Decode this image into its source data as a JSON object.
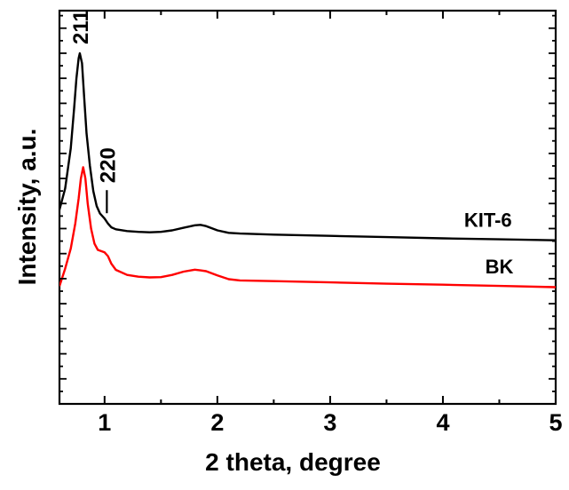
{
  "chart_data": {
    "type": "line",
    "title": "",
    "xlabel": "2 theta, degree",
    "ylabel": "Intensity, a.u.",
    "xlim": [
      0.6,
      5
    ],
    "x_ticks": [
      "1",
      "2",
      "3",
      "4",
      "5"
    ],
    "y_ticks_labeled": false,
    "grid": false,
    "legend": "none",
    "annotations": [
      {
        "text": "211",
        "x": 0.78
      },
      {
        "text": "220",
        "x": 1.0
      }
    ],
    "series": [
      {
        "name": "KIT-6",
        "color": "#000000",
        "x": [
          0.6,
          0.65,
          0.7,
          0.73,
          0.75,
          0.77,
          0.78,
          0.8,
          0.82,
          0.84,
          0.87,
          0.9,
          0.93,
          0.96,
          1.0,
          1.03,
          1.06,
          1.1,
          1.2,
          1.3,
          1.4,
          1.5,
          1.6,
          1.7,
          1.8,
          1.85,
          1.9,
          2.0,
          2.1,
          2.2,
          2.5,
          3.0,
          3.5,
          4.0,
          4.5,
          5.0
        ],
        "y": [
          17.5,
          26,
          42,
          58,
          70,
          78,
          80,
          76,
          62,
          48,
          35,
          25,
          19,
          16,
          14,
          12,
          10.5,
          9.7,
          9.0,
          8.7,
          8.5,
          8.7,
          9.3,
          10.3,
          11.3,
          11.5,
          11.0,
          9.3,
          8.3,
          8.0,
          7.6,
          7.1,
          6.6,
          6.1,
          5.7,
          5.3
        ]
      },
      {
        "name": "BK",
        "color": "#ff0000",
        "x": [
          0.6,
          0.65,
          0.7,
          0.74,
          0.77,
          0.79,
          0.81,
          0.83,
          0.85,
          0.88,
          0.91,
          0.94,
          0.97,
          1.0,
          1.03,
          1.06,
          1.1,
          1.2,
          1.3,
          1.4,
          1.5,
          1.6,
          1.7,
          1.8,
          1.85,
          1.9,
          2.0,
          2.1,
          2.2,
          2.5,
          3.0,
          3.5,
          4.0,
          4.5,
          5.0
        ],
        "y": [
          -13,
          -6,
          2,
          12,
          22,
          30,
          34.5,
          30,
          20,
          10,
          4,
          1.5,
          1,
          0.5,
          -1,
          -4,
          -6.5,
          -8.5,
          -9.2,
          -9.5,
          -9.4,
          -8.5,
          -7.2,
          -6.4,
          -6.7,
          -7.0,
          -8.7,
          -10.2,
          -10.7,
          -11.0,
          -11.5,
          -12.0,
          -12.4,
          -12.9,
          -13.4
        ]
      }
    ]
  }
}
